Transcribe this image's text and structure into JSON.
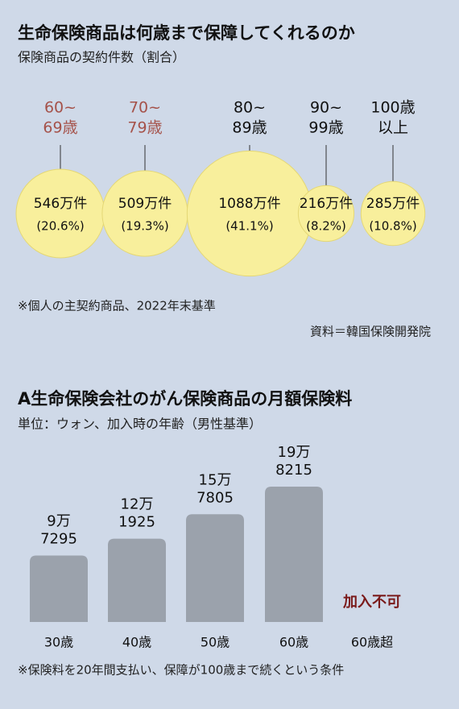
{
  "chart_data": [
    {
      "type": "bubble",
      "title": "生命保険商品は何歳まで保障してくれるのか",
      "subtitle": "保険商品の契約件数（割合）",
      "categories": [
        [
          "60~",
          "69歳"
        ],
        [
          "70~",
          "79歳"
        ],
        [
          "80~",
          "89歳"
        ],
        [
          "90~",
          "99歳"
        ],
        [
          "100歳",
          "以上"
        ]
      ],
      "category_colors": [
        "#a5524a",
        "#a5524a",
        "#111111",
        "#111111",
        "#111111"
      ],
      "values": [
        546,
        509,
        1088,
        216,
        285
      ],
      "value_labels": [
        "546万件",
        "509万件",
        "1088万件",
        "216万件",
        "285万件"
      ],
      "shares": [
        20.6,
        19.3,
        41.1,
        8.2,
        10.8
      ],
      "share_labels": [
        "(20.6%)",
        "(19.3%)",
        "(41.1%)",
        "(8.2%)",
        "(10.8%)"
      ],
      "color": "#f8ef9c",
      "note": "※個人の主契約商品、2022年末基準",
      "source": "資料＝韓国保険開発院"
    },
    {
      "type": "bar",
      "title": "A生命保険会社のがん保険商品の月額保険料",
      "subtitle": "単位：ウォン、加入時の年齢（男性基準）",
      "categories": [
        "30歳",
        "40歳",
        "50歳",
        "60歳",
        "60歳超"
      ],
      "values": [
        97295,
        121925,
        157805,
        198215,
        null
      ],
      "value_labels": [
        [
          "9万",
          "7295"
        ],
        [
          "12万",
          "1925"
        ],
        [
          "15万",
          "7805"
        ],
        [
          "19万",
          "8215"
        ],
        null
      ],
      "color": "#9ba2ac",
      "annotation": "加入不可",
      "note": "※保険料を20年間支払い、保障が100歳まで続くという条件"
    }
  ]
}
